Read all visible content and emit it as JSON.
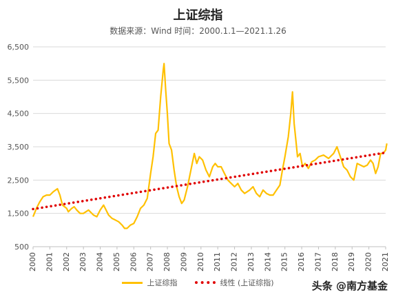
{
  "chart_data": {
    "type": "line",
    "title": "上证综指",
    "subtitle": "数据来源：Wind  时间：2000.1.1—2021.1.26",
    "xlabel": "",
    "ylabel": "",
    "ylim": [
      500,
      6500
    ],
    "xlim": [
      2000,
      2021
    ],
    "y_ticks": [
      "6,500",
      "5,500",
      "4,500",
      "3,500",
      "2,500",
      "1,500",
      "500"
    ],
    "y_tick_values": [
      6500,
      5500,
      4500,
      3500,
      2500,
      1500,
      500
    ],
    "x_ticks": [
      "2000",
      "2001",
      "2002",
      "2003",
      "2004",
      "2005",
      "2006",
      "2007",
      "2008",
      "2009",
      "2010",
      "2011",
      "2012",
      "2013",
      "2014",
      "2015",
      "2016",
      "2017",
      "2018",
      "2019",
      "2020",
      "2021"
    ],
    "grid": true,
    "legend_position": "bottom",
    "series": [
      {
        "name": "上证综指",
        "color": "#FFC000",
        "style": "solid",
        "x": [
          2000.0,
          2000.2,
          2000.4,
          2000.6,
          2000.8,
          2001.0,
          2001.2,
          2001.45,
          2001.6,
          2001.75,
          2002.0,
          2002.1,
          2002.3,
          2002.45,
          2002.6,
          2002.8,
          2003.0,
          2003.3,
          2003.6,
          2003.8,
          2004.0,
          2004.2,
          2004.3,
          2004.5,
          2004.7,
          2004.9,
          2005.1,
          2005.3,
          2005.45,
          2005.6,
          2005.8,
          2006.0,
          2006.2,
          2006.4,
          2006.6,
          2006.8,
          2007.0,
          2007.15,
          2007.3,
          2007.45,
          2007.6,
          2007.75,
          2007.8,
          2007.9,
          2008.0,
          2008.1,
          2008.25,
          2008.4,
          2008.55,
          2008.7,
          2008.85,
          2009.0,
          2009.2,
          2009.4,
          2009.6,
          2009.75,
          2009.9,
          2010.1,
          2010.3,
          2010.5,
          2010.7,
          2010.85,
          2011.0,
          2011.2,
          2011.4,
          2011.6,
          2011.8,
          2012.0,
          2012.2,
          2012.4,
          2012.6,
          2012.9,
          2013.1,
          2013.3,
          2013.5,
          2013.7,
          2013.9,
          2014.1,
          2014.3,
          2014.5,
          2014.7,
          2014.85,
          2015.0,
          2015.2,
          2015.35,
          2015.45,
          2015.55,
          2015.65,
          2015.75,
          2015.9,
          2016.05,
          2016.2,
          2016.4,
          2016.6,
          2016.8,
          2017.0,
          2017.3,
          2017.6,
          2017.9,
          2018.1,
          2018.3,
          2018.5,
          2018.7,
          2018.9,
          2019.1,
          2019.3,
          2019.5,
          2019.7,
          2019.9,
          2020.1,
          2020.25,
          2020.4,
          2020.55,
          2020.7,
          2020.85,
          2021.0,
          2021.07
        ],
        "y": [
          1400,
          1650,
          1850,
          2000,
          2050,
          2050,
          2150,
          2240,
          2050,
          1750,
          1650,
          1550,
          1650,
          1700,
          1600,
          1500,
          1500,
          1600,
          1450,
          1400,
          1600,
          1750,
          1650,
          1450,
          1350,
          1300,
          1250,
          1150,
          1050,
          1050,
          1150,
          1200,
          1400,
          1650,
          1750,
          1950,
          2700,
          3200,
          3900,
          4000,
          5000,
          5800,
          6000,
          5200,
          4500,
          3600,
          3400,
          2800,
          2300,
          2000,
          1800,
          1900,
          2300,
          2800,
          3300,
          3000,
          3200,
          3100,
          2800,
          2600,
          2900,
          3000,
          2900,
          2900,
          2700,
          2500,
          2400,
          2300,
          2400,
          2200,
          2100,
          2200,
          2300,
          2100,
          2000,
          2200,
          2100,
          2050,
          2050,
          2200,
          2350,
          2800,
          3200,
          3800,
          4500,
          5150,
          4200,
          3700,
          3200,
          3300,
          2900,
          3000,
          2850,
          3050,
          3100,
          3200,
          3250,
          3150,
          3300,
          3500,
          3200,
          2900,
          2800,
          2600,
          2500,
          3000,
          2950,
          2900,
          2950,
          3100,
          3000,
          2700,
          2900,
          3300,
          3300,
          3400,
          3600
        ]
      },
      {
        "name": "线性 (上证综指)",
        "color": "#E00000",
        "style": "dotted",
        "x": [
          2000.0,
          2021.07
        ],
        "y": [
          1630,
          3330
        ]
      }
    ],
    "annotations": [
      "头条 @南方基金"
    ]
  }
}
